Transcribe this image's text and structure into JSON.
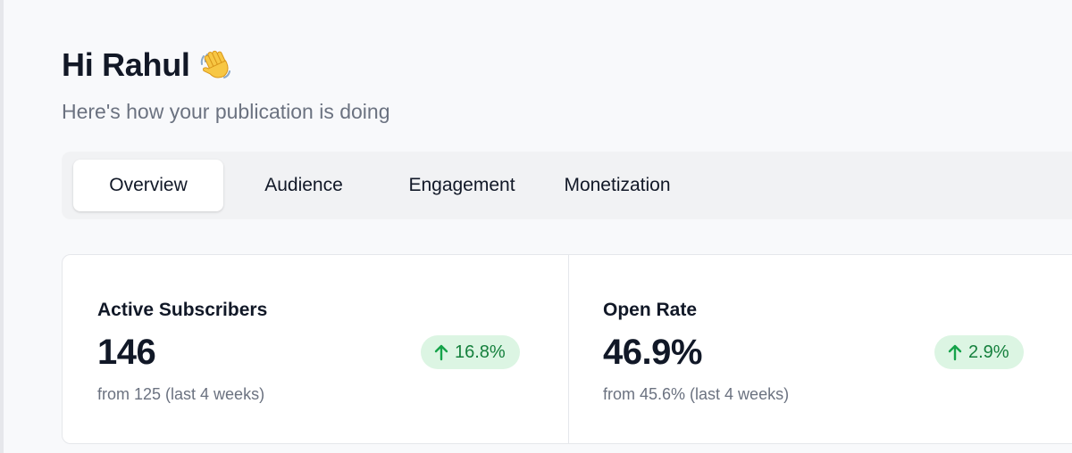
{
  "header": {
    "title": "Hi Rahul",
    "wave_icon": "waving-hand-icon",
    "subtitle": "Here's how your publication is doing"
  },
  "tabs": [
    {
      "label": "Overview",
      "active": true
    },
    {
      "label": "Audience",
      "active": false
    },
    {
      "label": "Engagement",
      "active": false
    },
    {
      "label": "Monetization",
      "active": false
    }
  ],
  "stats": [
    {
      "label": "Active Subscribers",
      "value": "146",
      "change": "16.8%",
      "change_direction": "up",
      "from_text": "from 125 (last 4 weeks)"
    },
    {
      "label": "Open Rate",
      "value": "46.9%",
      "change": "2.9%",
      "change_direction": "up",
      "from_text": "from 45.6% (last 4 weeks)"
    }
  ],
  "colors": {
    "positive_badge_bg": "#dcf5e3",
    "positive_badge_text": "#15803d"
  }
}
